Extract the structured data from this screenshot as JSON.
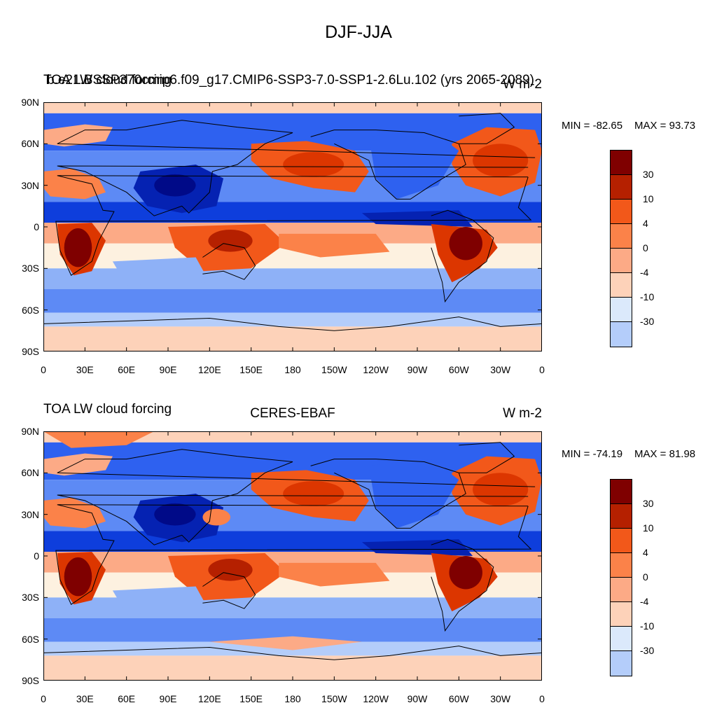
{
  "title": "DJF-JJA",
  "colors": [
    "#7f0000",
    "#b52000",
    "#dc3600",
    "#f2581a",
    "#fb8249",
    "#fcaa86",
    "#fdd2b9",
    "#fdf1e0",
    "#dbe9fb",
    "#b4cdfa",
    "#8eb1f7",
    "#5d8af5",
    "#2e61f0",
    "#0e3edc",
    "#0522b2",
    "#000a88"
  ],
  "colorbar_labels": [
    "30",
    "10",
    "4",
    "0",
    "-4",
    "-10",
    "-30"
  ],
  "lat_labels": [
    "90N",
    "60N",
    "30N",
    "0",
    "30S",
    "60S",
    "90S"
  ],
  "lon_labels": [
    "0",
    "30E",
    "60E",
    "90E",
    "120E",
    "150E",
    "180",
    "150W",
    "120W",
    "90W",
    "60W",
    "30W",
    "0"
  ],
  "panels": [
    {
      "left_title": "TOA LW cloud forcing",
      "center_title": "b.e21.BSSP370cmip6.f09_g17.CMIP6-SSP3-7.0-SSP1-2.6Lu.102 (yrs 2065-2089)",
      "right_title": "W m-2",
      "min_label": "MIN = -82.65",
      "max_label": "MAX =  93.73"
    },
    {
      "left_title": "TOA LW cloud forcing",
      "center_title": "CERES-EBAF",
      "right_title": "W m-2",
      "min_label": "MIN = -74.19",
      "max_label": "MAX =  81.98"
    }
  ]
}
